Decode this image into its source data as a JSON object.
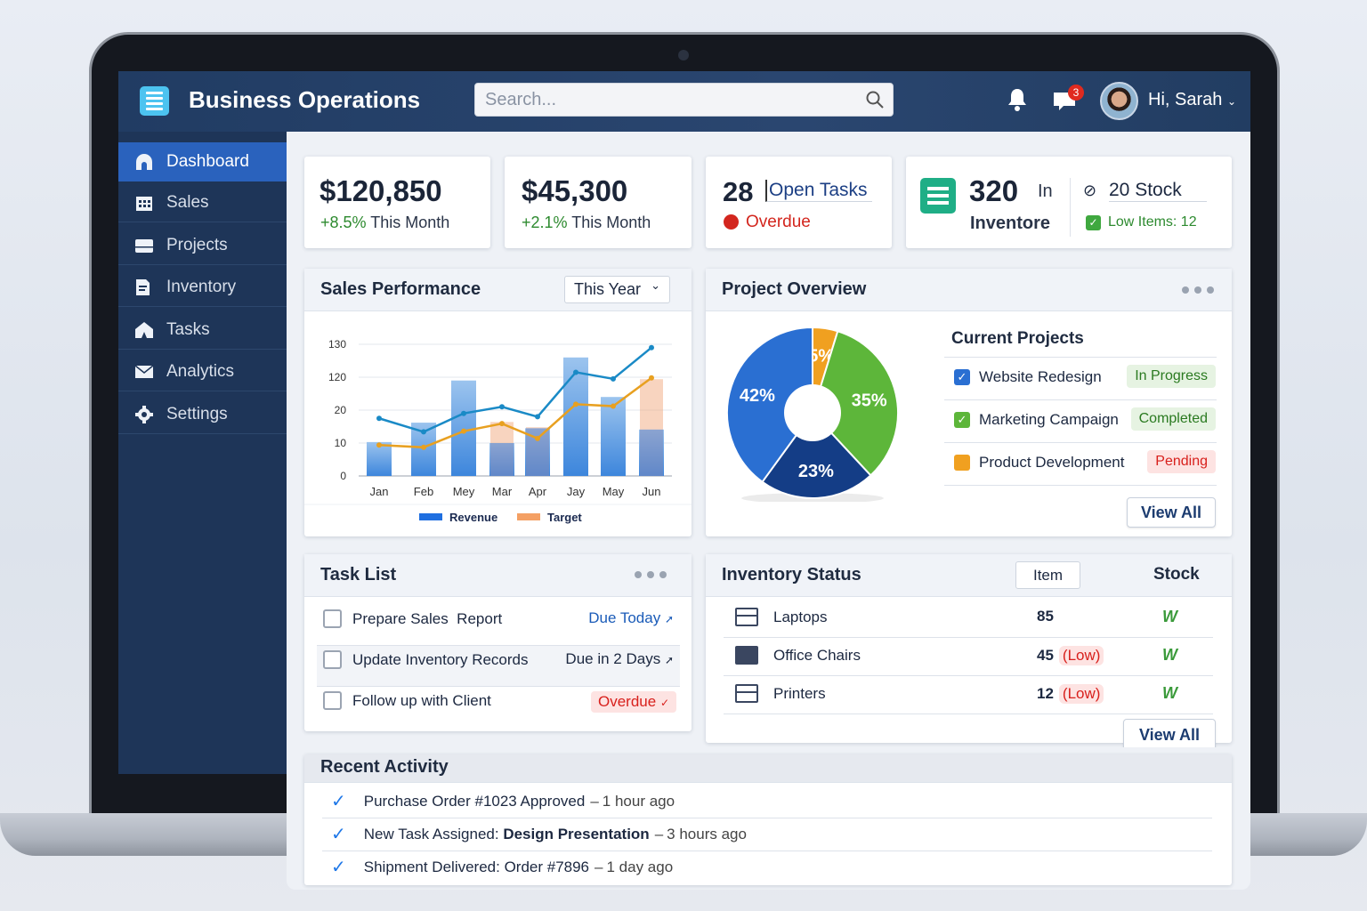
{
  "app": {
    "title": "Business Operations",
    "search_placeholder": "Search...",
    "notifications_count": "3",
    "greeting": "Hi, Sarah"
  },
  "sidebar": {
    "items": [
      {
        "label": "Dashboard",
        "icon": "home-icon",
        "active": true
      },
      {
        "label": "Sales",
        "icon": "calendar-icon"
      },
      {
        "label": "Projects",
        "icon": "folder-icon"
      },
      {
        "label": "Inventory",
        "icon": "inventory-icon"
      },
      {
        "label": "Tasks",
        "icon": "tent-icon"
      },
      {
        "label": "Analytics",
        "icon": "mail-icon"
      },
      {
        "label": "Settings",
        "icon": "gear-icon"
      }
    ]
  },
  "kpis": [
    {
      "value": "$120,850",
      "change": "+8.5%",
      "period": "This Month"
    },
    {
      "value": "$45,300",
      "change": "+2.1%",
      "period": "This Month"
    },
    {
      "value": "28",
      "label": "Open Tasks",
      "status": "Overdue"
    },
    {
      "value": "320",
      "label_1": "In",
      "label_2": "Inventore",
      "stock": "20 Stock",
      "low": "Low Items: 12"
    }
  ],
  "sales": {
    "title": "Sales Performance",
    "range": "This Year"
  },
  "chart_data": {
    "type": "bar",
    "categories": [
      "Jan",
      "Feb",
      "Mey",
      "Mar",
      "Apr",
      "Jay",
      "May",
      "Jun"
    ],
    "y_ticks": [
      0,
      10,
      20,
      120,
      130
    ],
    "ylim": [
      0,
      130
    ],
    "grid": true,
    "legend": "bottom",
    "series": [
      {
        "name": "Revenue",
        "kind": "bar",
        "color": "#4a90e2",
        "values": [
          10.3,
          16.2,
          110,
          10,
          14.5,
          126,
          60,
          14.1
        ]
      },
      {
        "name": "Target",
        "kind": "bar-overlay",
        "color": "#f0a070",
        "values": [
          null,
          null,
          null,
          16.4,
          14.8,
          null,
          null,
          114
        ]
      },
      {
        "kind": "line",
        "color": "#1a8ac6",
        "values": [
          17.5,
          13.4,
          19,
          30,
          18,
          121.5,
          115,
          129
        ]
      },
      {
        "kind": "line",
        "color": "#e8a020",
        "values": [
          9.4,
          8.7,
          13.6,
          15.9,
          11.4,
          38,
          32,
          118
        ]
      }
    ],
    "legend_items": [
      {
        "name": "Revenue",
        "color": "#1f6fe0"
      },
      {
        "name": "Target",
        "color": "#f4a064"
      }
    ]
  },
  "projects": {
    "title": "Project Overview",
    "pie": [
      {
        "label": "5%",
        "value": 5,
        "color": "#f0a020"
      },
      {
        "label": "35%",
        "value": 35,
        "color": "#5db63a"
      },
      {
        "label": "23%",
        "value": 23,
        "color": "#143d86"
      },
      {
        "label": "42%",
        "value": 42,
        "color": "#2a6fd2"
      }
    ],
    "list_title": "Current Projects",
    "items": [
      {
        "name": "Website Redesign",
        "status": "In Progress",
        "type": "ok"
      },
      {
        "name": "Marketing Campaign",
        "status": "Completed",
        "type": "ok"
      },
      {
        "name": "Product Development",
        "status": "Pending",
        "type": "bad"
      }
    ],
    "view_all": "View All"
  },
  "tasks": {
    "title": "Task List",
    "items": [
      {
        "name": "Prepare Sales  Report",
        "due": "Due Today"
      },
      {
        "name": "Update Inventory Records",
        "due": "Due in 2 Days"
      },
      {
        "name": "Follow up with Client",
        "due": "Overdue"
      }
    ]
  },
  "inventory": {
    "title": "Inventory Status",
    "col_item": "Item",
    "col_stock": "Stock",
    "items": [
      {
        "name": "Laptops",
        "qty": "85",
        "flag": ""
      },
      {
        "name": "Office Chairs",
        "qty": "45",
        "flag": "(Low)"
      },
      {
        "name": "Printers",
        "qty": "12",
        "flag": "(Low)"
      }
    ],
    "view_all": "View All"
  },
  "activity": {
    "title": "Recent Activity",
    "items": [
      {
        "text": "Purchase Order #1023 Approved",
        "bold": "",
        "time": "1 hour ago"
      },
      {
        "text": "New Task Assigned: ",
        "bold": "Design Presentation",
        "time": "3 hours ago"
      },
      {
        "text": "Shipment Delivered: Order #7896",
        "bold": "",
        "time": "1 day ago"
      }
    ]
  }
}
